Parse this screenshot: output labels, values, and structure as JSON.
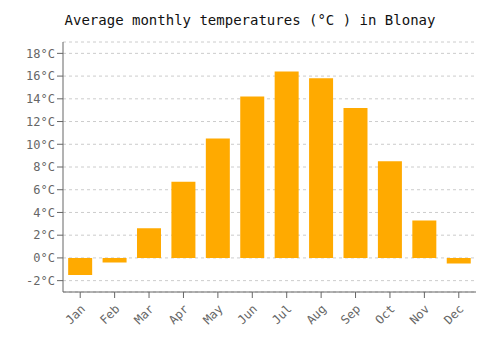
{
  "chart_data": {
    "type": "bar",
    "title": "Average monthly temperatures (°C ) in Blonay",
    "categories": [
      "Jan",
      "Feb",
      "Mar",
      "Apr",
      "May",
      "Jun",
      "Jul",
      "Aug",
      "Sep",
      "Oct",
      "Nov",
      "Dec"
    ],
    "values": [
      -1.5,
      -0.4,
      2.6,
      6.7,
      10.5,
      14.2,
      16.4,
      15.8,
      13.2,
      8.5,
      3.3,
      -0.5
    ],
    "color": "#FFAA00",
    "ylim": [
      -3,
      19
    ],
    "yticks": [
      {
        "value": -2,
        "label": "-2°C"
      },
      {
        "value": 0,
        "label": "0°C"
      },
      {
        "value": 2,
        "label": "2°C"
      },
      {
        "value": 4,
        "label": "4°C"
      },
      {
        "value": 6,
        "label": "6°C"
      },
      {
        "value": 8,
        "label": "8°C"
      },
      {
        "value": 10,
        "label": "10°C"
      },
      {
        "value": 12,
        "label": "12°C"
      },
      {
        "value": 14,
        "label": "14°C"
      },
      {
        "value": 16,
        "label": "16°C"
      },
      {
        "value": 18,
        "label": "18°C"
      }
    ],
    "grid": true
  }
}
